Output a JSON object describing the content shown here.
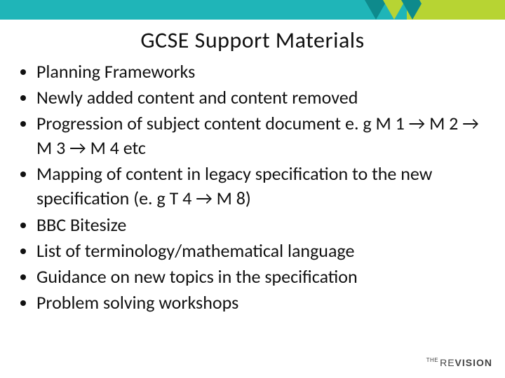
{
  "colors": {
    "top_bar": "#1fb5b8",
    "accent_lime": "#b7d433",
    "accent_teal_dark": "#0e8a8c",
    "text": "#111111",
    "background": "#ffffff",
    "logo_text": "#444444"
  },
  "title": "GCSE Support Materials",
  "title_fontsize": 32,
  "bullet_fontsize": 26,
  "bullets": [
    "Planning Frameworks",
    "Newly added content and content removed",
    "Progression of subject content document e. g M 1 → M 2 → M 3 → M 4 etc",
    " Mapping of content in legacy specification to the new specification (e. g T 4 → M 8)",
    "BBC Bitesize",
    "List of terminology/mathematical language",
    "Guidance on new topics in the specification",
    "Problem solving workshops"
  ],
  "logo": {
    "prefix": "THE",
    "part1": "RE",
    "part2": "VISION"
  }
}
